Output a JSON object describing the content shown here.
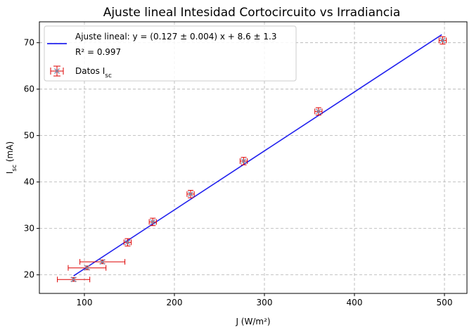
{
  "chart_data": {
    "type": "scatter",
    "title": "Ajuste lineal Intesidad Cortocircuito vs Irradiancia",
    "xlabel": "J (W/m²)",
    "ylabel_main": "I",
    "ylabel_sub": "sc",
    "ylabel_unit": " (mA)",
    "xlim": [
      50,
      525
    ],
    "ylim": [
      16,
      74.5
    ],
    "xticks": [
      100,
      200,
      300,
      400,
      500
    ],
    "yticks": [
      20,
      30,
      40,
      50,
      60,
      70
    ],
    "grid": true,
    "legend_position": "top-left",
    "fit": {
      "name": "Ajuste lineal: y = (0.127 ± 0.004) x + 8.6 ± 1.3",
      "name_line2": "R² = 0.997",
      "slope": 0.127,
      "intercept": 8.6,
      "x_range": [
        88,
        497
      ],
      "color": "#2222ee"
    },
    "series": [
      {
        "name": "Datos I_sc",
        "label_main": "Datos I",
        "label_sub": "sc",
        "color": "#dd0000",
        "marker_color": "#7a8fb0",
        "points": [
          {
            "x": 88,
            "y": 19.0,
            "xerr": 18,
            "yerr": 0.4
          },
          {
            "x": 103,
            "y": 21.5,
            "xerr": 21,
            "yerr": 0.4
          },
          {
            "x": 120,
            "y": 22.8,
            "xerr": 25,
            "yerr": 0.4
          },
          {
            "x": 148,
            "y": 27.0,
            "xerr": 4,
            "yerr": 0.8
          },
          {
            "x": 176,
            "y": 31.4,
            "xerr": 4,
            "yerr": 0.8
          },
          {
            "x": 218,
            "y": 37.4,
            "xerr": 4,
            "yerr": 0.8
          },
          {
            "x": 277,
            "y": 44.5,
            "xerr": 4,
            "yerr": 0.8
          },
          {
            "x": 360,
            "y": 55.2,
            "xerr": 4,
            "yerr": 0.8
          },
          {
            "x": 498,
            "y": 70.5,
            "xerr": 4,
            "yerr": 0.8
          }
        ]
      }
    ]
  }
}
